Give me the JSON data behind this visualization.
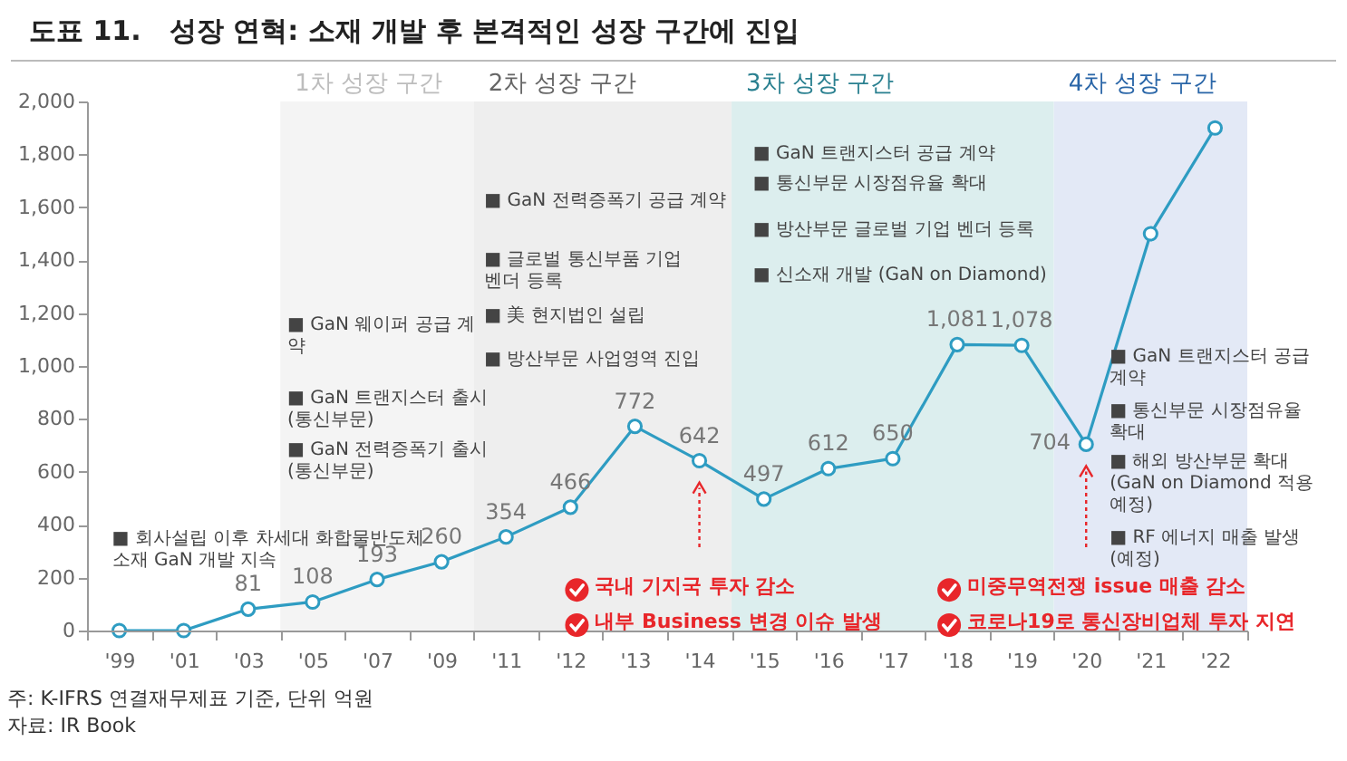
{
  "chart_data": {
    "type": "line",
    "title": "도표 11.   성장 연혁: 소재 개발 후 본격적인 성장 구간에 진입",
    "categories": [
      "'99",
      "'01",
      "'03",
      "'05",
      "'07",
      "'09",
      "'11",
      "'12",
      "'13",
      "'14",
      "'15",
      "'16",
      "'17",
      "'18",
      "'19",
      "'20",
      "'21",
      "'22"
    ],
    "values": [
      0,
      0,
      81,
      108,
      193,
      260,
      354,
      466,
      772,
      642,
      497,
      612,
      650,
      1081,
      1078,
      704,
      1500,
      1900
    ],
    "value_labels": [
      null,
      null,
      "81",
      "108",
      "193",
      "260",
      "354",
      "466",
      "772",
      "642",
      "497",
      "612",
      "650",
      "1,081",
      "1,078",
      "704",
      null,
      null
    ],
    "color": "#2e9cc2",
    "marker": "circle",
    "ylim": [
      0,
      2000
    ],
    "yticks": [
      0,
      200,
      400,
      600,
      800,
      {
        "value": 1000,
        "label": "1,000"
      },
      {
        "value": 1200,
        "label": "1,200"
      },
      {
        "value": 1400,
        "label": "1,400"
      },
      {
        "value": 1600,
        "label": "1,600"
      },
      {
        "value": 1800,
        "label": "1,800"
      },
      {
        "value": 2000,
        "label": "2,000"
      }
    ],
    "bands": [
      {
        "axis": "x",
        "from": "'05",
        "to": "'09",
        "label": "1차 성장 구간",
        "color": "#f4f4f4"
      },
      {
        "axis": "x",
        "from": "'11",
        "to": "'14",
        "label": "2차 성장 구간",
        "color": "#eeeeee"
      },
      {
        "axis": "x",
        "from": "'15",
        "to": "'19",
        "label": "3차 성장 구간",
        "color": "#dceeee"
      },
      {
        "axis": "x",
        "from": "'20",
        "to": "'22",
        "label": "4차 성장 구간",
        "color": "#e3e9f6"
      }
    ],
    "annotations": [
      "■ 회사설립 이후 차세대 화합물반도체\n   소재 GaN 개발 지속",
      "■ GaN 웨이퍼 공급 계\n   약",
      "■ GaN 트랜지스터 출시\n   (통신부문)",
      "■ GaN 전력증폭기 출시\n   (통신부문)",
      "■ GaN 전력증폭기 공급 계약",
      "■ 글로벌 통신부품 기업\n   벤더 등록",
      "■ 美 현지법인 설립",
      "■ 방산부문 사업영역 진입",
      "■ GaN 트랜지스터 공급 계약",
      "■ 통신부문 시장점유율 확대",
      "■ 방산부문 글로벌 기업 벤더 등록",
      "■ 신소재 개발 (GaN on Diamond)",
      "■ GaN 트랜지스터 공급\n   계약",
      "■ 통신부문 시장점유율\n   확대",
      "■ 해외 방산부문 확대\n   (GaN on Diamond 적용\n   예정)",
      "■ RF 에너지 매출 발생\n   (예정)",
      "국내 기지국 투자 감소",
      "내부 Business 변경 이슈 발생",
      "미중무역전쟁 issue 매출 감소",
      "코로나19로 통신장비업체 투자 지연",
      "주: K-IFRS 연결재무제표 기준, 단위 억원",
      "자료: IR Book"
    ]
  }
}
